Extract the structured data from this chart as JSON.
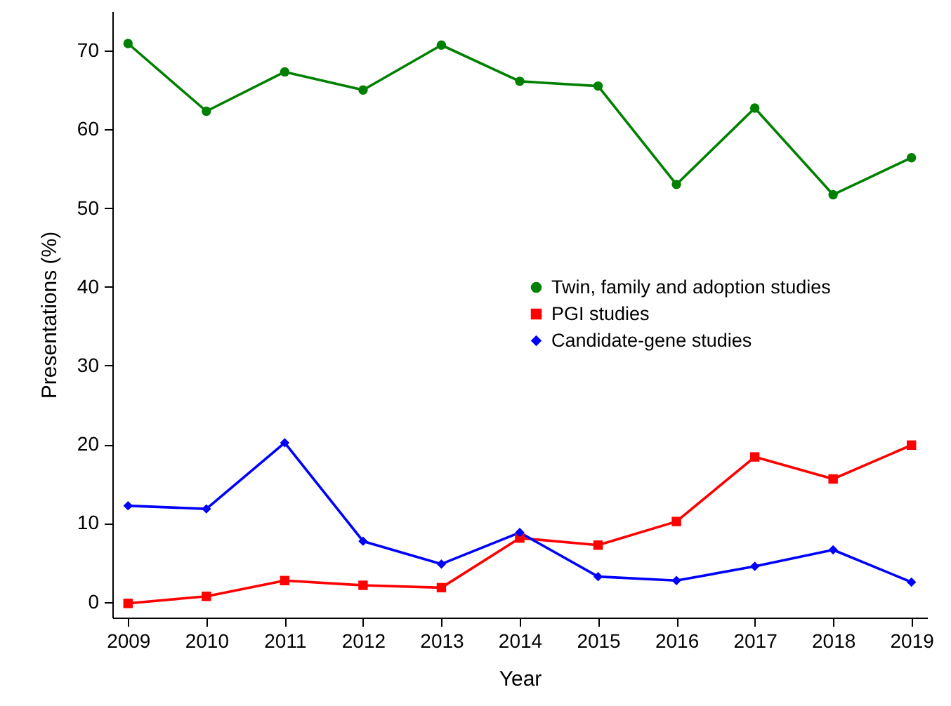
{
  "chart_data": {
    "type": "line",
    "xlabel": "Year",
    "ylabel": "Presentations (%)",
    "x": [
      2009,
      2010,
      2011,
      2012,
      2013,
      2014,
      2015,
      2016,
      2017,
      2018,
      2019
    ],
    "xlim": [
      2008.8,
      2019.2
    ],
    "xticks": [
      2009,
      2010,
      2011,
      2012,
      2013,
      2014,
      2015,
      2016,
      2017,
      2018,
      2019
    ],
    "ylim": [
      -2,
      75
    ],
    "yticks": [
      0,
      10,
      20,
      30,
      40,
      50,
      60,
      70
    ],
    "grid": false,
    "legend": "right",
    "line_style": "solid",
    "series": [
      {
        "name": "Twin, family and adoption studies",
        "color": "#008000",
        "marker": "circle",
        "values": [
          70.9,
          62.3,
          67.3,
          65.0,
          70.7,
          66.1,
          65.5,
          53.0,
          62.7,
          51.7,
          56.4
        ]
      },
      {
        "name": "PGI studies",
        "color": "#ff0000",
        "marker": "square",
        "values": [
          -0.2,
          0.7,
          2.7,
          2.1,
          1.8,
          8.1,
          7.2,
          10.2,
          18.4,
          15.6,
          19.9
        ]
      },
      {
        "name": "Candidate-gene studies",
        "color": "#0000ff",
        "marker": "diamond",
        "values": [
          12.2,
          11.8,
          20.2,
          7.7,
          4.8,
          8.8,
          3.2,
          2.7,
          4.5,
          6.6,
          2.5
        ]
      }
    ]
  }
}
